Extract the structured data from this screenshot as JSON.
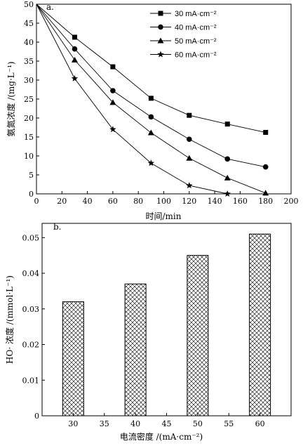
{
  "chart_data": [
    {
      "type": "line",
      "panel_label": "a.",
      "xlabel": "时间/min",
      "ylabel": "氨氮浓度 /(mg·L⁻¹)",
      "xlim": [
        0,
        200
      ],
      "ylim": [
        0,
        50
      ],
      "xticks": [
        0,
        20,
        40,
        60,
        80,
        100,
        120,
        140,
        160,
        180,
        200
      ],
      "yticks": [
        0,
        5,
        10,
        15,
        20,
        25,
        30,
        35,
        40,
        45,
        50
      ],
      "legend_position": "top-right",
      "grid": false,
      "x": [
        0,
        30,
        60,
        90,
        120,
        150,
        180
      ],
      "series": [
        {
          "name": "30 mA·cm⁻²",
          "marker": "square",
          "values": [
            50,
            41.3,
            33.5,
            25.2,
            20.7,
            18.4,
            16.2
          ]
        },
        {
          "name": "40 mA·cm⁻²",
          "marker": "circle",
          "values": [
            50,
            38.2,
            27.2,
            20.3,
            14.4,
            9.2,
            7.1
          ]
        },
        {
          "name": "50 mA·cm⁻²",
          "marker": "triangle",
          "values": [
            50,
            35.3,
            24.1,
            16.1,
            9.4,
            4.2,
            0.2
          ]
        },
        {
          "name": "60 mA·cm⁻²",
          "marker": "star",
          "values": [
            50,
            30.4,
            17.0,
            8.1,
            2.2,
            0.0,
            null
          ]
        }
      ]
    },
    {
      "type": "bar",
      "panel_label": "b.",
      "xlabel": "电流密度 /(mA·cm⁻²)",
      "ylabel": "HO· 浓度 /(mmol·L⁻¹)",
      "xlim": [
        25,
        65
      ],
      "ylim": [
        0,
        0.054
      ],
      "xticks": [
        30,
        35,
        40,
        45,
        50,
        55,
        60
      ],
      "yticks": [
        0,
        0.01,
        0.02,
        0.03,
        0.04,
        0.05
      ],
      "yticklabels": [
        "0",
        "0.01",
        "0.02",
        "0.03",
        "0.04",
        "0.05"
      ],
      "bar_fill": "crosshatch",
      "grid": false,
      "categories": [
        30,
        40,
        50,
        60
      ],
      "values": [
        0.032,
        0.037,
        0.045,
        0.051
      ]
    }
  ]
}
